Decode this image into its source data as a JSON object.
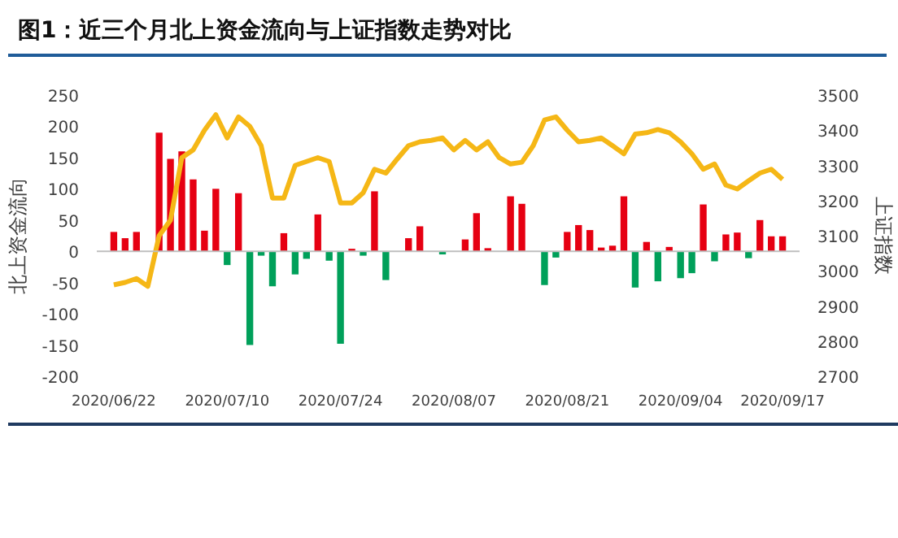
{
  "chart_data": {
    "type": "bar",
    "title": "图1：近三个月北上资金流向与上证指数走势对比",
    "ylabel": "北上资金流向",
    "y2label": "上证指数",
    "categories": [
      "2020/06/22",
      null,
      null,
      null,
      null,
      null,
      null,
      null,
      null,
      null,
      "2020/07/10",
      null,
      null,
      null,
      null,
      null,
      null,
      null,
      null,
      null,
      "2020/07/24",
      null,
      null,
      null,
      null,
      null,
      null,
      null,
      null,
      null,
      "2020/08/07",
      null,
      null,
      null,
      null,
      null,
      null,
      null,
      null,
      null,
      "2020/08/21",
      null,
      null,
      null,
      null,
      null,
      null,
      null,
      null,
      null,
      "2020/09/04",
      null,
      null,
      null,
      null,
      null,
      null,
      null,
      null,
      "2020/09/17"
    ],
    "ylim": [
      -200,
      250
    ],
    "yticks": [
      -200,
      -150,
      -100,
      -50,
      0,
      50,
      100,
      150,
      200,
      250
    ],
    "y2lim": [
      2700,
      3500
    ],
    "y2ticks": [
      2700,
      2800,
      2900,
      3000,
      3100,
      3200,
      3300,
      3400,
      3500
    ],
    "grid": false,
    "ref_lines": [
      {
        "axis": "y",
        "value": 0,
        "color": "#bfbfbf"
      }
    ],
    "series": [
      {
        "axis": "y",
        "values": [
          31,
          21,
          31,
          null,
          190,
          148,
          160,
          115,
          33,
          100,
          -22,
          93,
          -150,
          -7,
          -56,
          29,
          -37,
          -12,
          59,
          -15,
          -148,
          4,
          -7,
          96,
          -46,
          null,
          21,
          40,
          null,
          -5,
          null,
          19,
          61,
          5,
          null,
          88,
          76,
          null,
          -54,
          -10,
          31,
          42,
          34,
          6,
          9,
          88,
          -58,
          15,
          -48,
          7,
          -43,
          -35,
          75,
          -16,
          27,
          30,
          -11,
          50,
          24,
          24
        ],
        "colors": [
          "#e60012",
          "#e60012",
          "#e60012",
          "#e60012",
          "#e60012",
          "#e60012",
          "#e60012",
          "#e60012",
          "#e60012",
          "#e60012",
          "#00a05a",
          "#e60012",
          "#00a05a",
          "#00a05a",
          "#00a05a",
          "#e60012",
          "#00a05a",
          "#00a05a",
          "#e60012",
          "#00a05a",
          "#00a05a",
          "#e60012",
          "#00a05a",
          "#e60012",
          "#00a05a",
          "#e60012",
          "#e60012",
          "#e60012",
          "#e60012",
          "#00a05a",
          "#e60012",
          "#e60012",
          "#e60012",
          "#e60012",
          "#e60012",
          "#e60012",
          "#e60012",
          "#e60012",
          "#00a05a",
          "#00a05a",
          "#e60012",
          "#e60012",
          "#e60012",
          "#e60012",
          "#e60012",
          "#e60012",
          "#00a05a",
          "#e60012",
          "#00a05a",
          "#e60012",
          "#00a05a",
          "#00a05a",
          "#e60012",
          "#00a05a",
          "#e60012",
          "#e60012",
          "#00a05a",
          "#e60012",
          "#e60012",
          "#e60012"
        ]
      },
      {
        "type": "line",
        "axis": "y2",
        "color": "#f5b716",
        "line_style": "solid",
        "marker": "none",
        "values": [
          2960,
          2967,
          2978,
          2956,
          3100,
          3144,
          3322,
          3344,
          3400,
          3444,
          3378,
          3438,
          3411,
          3356,
          3207,
          3207,
          3300,
          3311,
          3322,
          3311,
          3193,
          3193,
          3222,
          3289,
          3278,
          3318,
          3356,
          3367,
          3371,
          3378,
          3344,
          3371,
          3344,
          3367,
          3322,
          3304,
          3309,
          3356,
          3429,
          3438,
          3400,
          3367,
          3371,
          3378,
          3356,
          3333,
          3389,
          3393,
          3402,
          3393,
          3367,
          3333,
          3289,
          3304,
          3244,
          3233,
          3256,
          3278,
          3289,
          3260
        ]
      }
    ]
  }
}
